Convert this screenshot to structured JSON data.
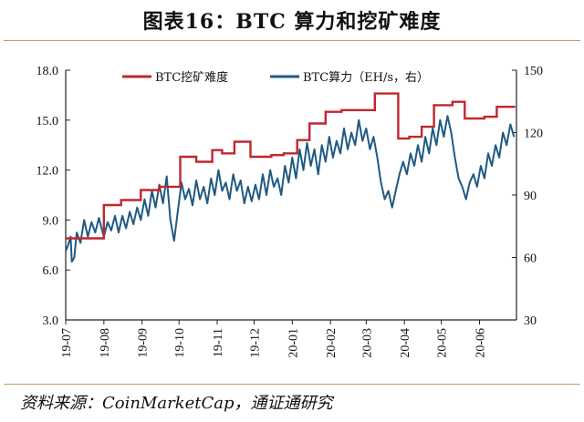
{
  "title": "图表16：BTC 算力和挖矿难度",
  "source": "资料来源：CoinMarketCap，通证通研究",
  "chart_data": {
    "type": "line",
    "legend_position": "top",
    "legend": [
      "BTC挖矿难度",
      "BTC算力（EH/s，右）"
    ],
    "x_tick_labels": [
      "19-07",
      "19-08",
      "19-09",
      "19-10",
      "19-11",
      "19-12",
      "20-01",
      "20-02",
      "20-03",
      "20-04",
      "20-05",
      "20-06"
    ],
    "x_range": [
      "2019-07-01",
      "2020-07-01"
    ],
    "left_axis": {
      "ticks": [
        "18.0",
        "15.0",
        "12.0",
        "9.0",
        "6.0",
        "3.0"
      ],
      "range": [
        3,
        18
      ]
    },
    "right_axis": {
      "ticks": [
        "150",
        "120",
        "90",
        "60",
        "30"
      ],
      "range": [
        30,
        150
      ]
    },
    "colors": {
      "difficulty": "#c0272d",
      "hashrate": "#1f5a84"
    },
    "series": [
      {
        "name": "BTC挖矿难度",
        "axis": "left",
        "step": true,
        "points": [
          [
            "2019-07-01",
            7.9
          ],
          [
            "2019-07-20",
            7.9
          ],
          [
            "2019-08-01",
            9.9
          ],
          [
            "2019-08-15",
            10.2
          ],
          [
            "2019-08-31",
            10.8
          ],
          [
            "2019-09-15",
            11.0
          ],
          [
            "2019-10-02",
            12.8
          ],
          [
            "2019-10-15",
            12.5
          ],
          [
            "2019-10-28",
            13.2
          ],
          [
            "2019-11-05",
            13.0
          ],
          [
            "2019-11-15",
            13.7
          ],
          [
            "2019-11-28",
            12.8
          ],
          [
            "2019-12-05",
            12.8
          ],
          [
            "2019-12-15",
            12.9
          ],
          [
            "2019-12-25",
            13.0
          ],
          [
            "2020-01-05",
            13.8
          ],
          [
            "2020-01-15",
            14.8
          ],
          [
            "2020-01-28",
            15.5
          ],
          [
            "2020-02-10",
            15.6
          ],
          [
            "2020-02-28",
            15.6
          ],
          [
            "2020-03-08",
            16.6
          ],
          [
            "2020-03-27",
            13.9
          ],
          [
            "2020-04-05",
            14.0
          ],
          [
            "2020-04-15",
            14.6
          ],
          [
            "2020-04-25",
            15.9
          ],
          [
            "2020-05-10",
            16.1
          ],
          [
            "2020-05-20",
            15.1
          ],
          [
            "2020-06-05",
            15.2
          ],
          [
            "2020-06-15",
            15.8
          ],
          [
            "2020-06-30",
            15.8
          ]
        ]
      },
      {
        "name": "BTC算力（EH/s，右）",
        "axis": "right",
        "step": false,
        "points": [
          [
            "2019-07-01",
            63
          ],
          [
            "2019-07-03",
            66
          ],
          [
            "2019-07-05",
            70
          ],
          [
            "2019-07-06",
            58
          ],
          [
            "2019-07-08",
            60
          ],
          [
            "2019-07-10",
            72
          ],
          [
            "2019-07-13",
            67
          ],
          [
            "2019-07-16",
            78
          ],
          [
            "2019-07-19",
            70
          ],
          [
            "2019-07-22",
            77
          ],
          [
            "2019-07-25",
            72
          ],
          [
            "2019-07-28",
            79
          ],
          [
            "2019-08-01",
            70
          ],
          [
            "2019-08-04",
            77
          ],
          [
            "2019-08-07",
            73
          ],
          [
            "2019-08-10",
            80
          ],
          [
            "2019-08-13",
            72
          ],
          [
            "2019-08-16",
            80
          ],
          [
            "2019-08-19",
            74
          ],
          [
            "2019-08-22",
            82
          ],
          [
            "2019-08-25",
            76
          ],
          [
            "2019-08-28",
            84
          ],
          [
            "2019-08-31",
            78
          ],
          [
            "2019-09-03",
            88
          ],
          [
            "2019-09-06",
            80
          ],
          [
            "2019-09-09",
            92
          ],
          [
            "2019-09-12",
            84
          ],
          [
            "2019-09-15",
            95
          ],
          [
            "2019-09-18",
            86
          ],
          [
            "2019-09-21",
            99
          ],
          [
            "2019-09-24",
            78
          ],
          [
            "2019-09-27",
            68
          ],
          [
            "2019-09-30",
            82
          ],
          [
            "2019-10-03",
            96
          ],
          [
            "2019-10-06",
            88
          ],
          [
            "2019-10-09",
            93
          ],
          [
            "2019-10-12",
            85
          ],
          [
            "2019-10-15",
            97
          ],
          [
            "2019-10-18",
            88
          ],
          [
            "2019-10-21",
            94
          ],
          [
            "2019-10-24",
            86
          ],
          [
            "2019-10-27",
            98
          ],
          [
            "2019-10-30",
            90
          ],
          [
            "2019-11-02",
            102
          ],
          [
            "2019-11-05",
            92
          ],
          [
            "2019-11-08",
            96
          ],
          [
            "2019-11-11",
            88
          ],
          [
            "2019-11-14",
            100
          ],
          [
            "2019-11-17",
            92
          ],
          [
            "2019-11-20",
            97
          ],
          [
            "2019-11-23",
            86
          ],
          [
            "2019-11-26",
            94
          ],
          [
            "2019-11-29",
            87
          ],
          [
            "2019-12-02",
            95
          ],
          [
            "2019-12-05",
            88
          ],
          [
            "2019-12-08",
            100
          ],
          [
            "2019-12-11",
            90
          ],
          [
            "2019-12-14",
            102
          ],
          [
            "2019-12-17",
            94
          ],
          [
            "2019-12-20",
            98
          ],
          [
            "2019-12-23",
            90
          ],
          [
            "2019-12-26",
            104
          ],
          [
            "2019-12-29",
            96
          ],
          [
            "2020-01-01",
            108
          ],
          [
            "2020-01-04",
            98
          ],
          [
            "2020-01-07",
            112
          ],
          [
            "2020-01-10",
            102
          ],
          [
            "2020-01-13",
            115
          ],
          [
            "2020-01-16",
            104
          ],
          [
            "2020-01-19",
            112
          ],
          [
            "2020-01-22",
            100
          ],
          [
            "2020-01-25",
            114
          ],
          [
            "2020-01-28",
            106
          ],
          [
            "2020-01-31",
            118
          ],
          [
            "2020-02-03",
            108
          ],
          [
            "2020-02-06",
            116
          ],
          [
            "2020-02-09",
            110
          ],
          [
            "2020-02-12",
            122
          ],
          [
            "2020-02-15",
            112
          ],
          [
            "2020-02-18",
            120
          ],
          [
            "2020-02-21",
            114
          ],
          [
            "2020-02-24",
            126
          ],
          [
            "2020-02-27",
            116
          ],
          [
            "2020-03-01",
            122
          ],
          [
            "2020-03-04",
            112
          ],
          [
            "2020-03-07",
            118
          ],
          [
            "2020-03-10",
            108
          ],
          [
            "2020-03-13",
            96
          ],
          [
            "2020-03-16",
            88
          ],
          [
            "2020-03-19",
            92
          ],
          [
            "2020-03-22",
            84
          ],
          [
            "2020-03-25",
            92
          ],
          [
            "2020-03-28",
            100
          ],
          [
            "2020-03-31",
            106
          ],
          [
            "2020-04-03",
            100
          ],
          [
            "2020-04-06",
            110
          ],
          [
            "2020-04-09",
            104
          ],
          [
            "2020-04-12",
            114
          ],
          [
            "2020-04-15",
            106
          ],
          [
            "2020-04-18",
            118
          ],
          [
            "2020-04-21",
            110
          ],
          [
            "2020-04-24",
            122
          ],
          [
            "2020-04-27",
            114
          ],
          [
            "2020-04-30",
            126
          ],
          [
            "2020-05-03",
            118
          ],
          [
            "2020-05-06",
            128
          ],
          [
            "2020-05-09",
            120
          ],
          [
            "2020-05-12",
            108
          ],
          [
            "2020-05-15",
            98
          ],
          [
            "2020-05-18",
            94
          ],
          [
            "2020-05-21",
            88
          ],
          [
            "2020-05-24",
            96
          ],
          [
            "2020-05-27",
            100
          ],
          [
            "2020-05-30",
            94
          ],
          [
            "2020-06-02",
            104
          ],
          [
            "2020-06-05",
            98
          ],
          [
            "2020-06-08",
            110
          ],
          [
            "2020-06-11",
            104
          ],
          [
            "2020-06-14",
            114
          ],
          [
            "2020-06-17",
            108
          ],
          [
            "2020-06-20",
            120
          ],
          [
            "2020-06-23",
            114
          ],
          [
            "2020-06-26",
            124
          ],
          [
            "2020-06-29",
            118
          ]
        ]
      }
    ]
  }
}
